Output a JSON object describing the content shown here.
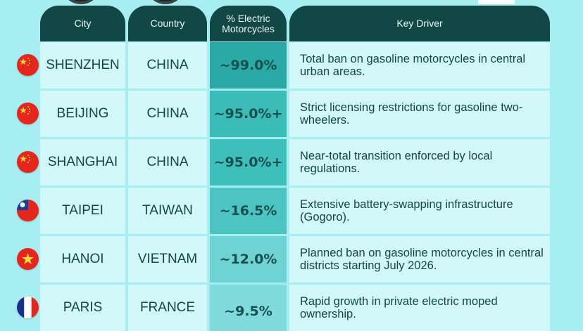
{
  "headers": {
    "city": "City",
    "country": "Country",
    "pct": "% Electric Motorcycles",
    "driver": "Key Driver"
  },
  "rows": [
    {
      "flag": "china-flag",
      "city": "SHENZHEN",
      "country": "CHINA",
      "pct": "~99.0%",
      "driver": "Total ban on gasoline motorcycles in central urban areas.",
      "pct_color": "#2aa9a6"
    },
    {
      "flag": "china-flag",
      "city": "BEIJING",
      "country": "CHINA",
      "pct": "~95.0%+",
      "driver": "Strict licensing restrictions for gasoline two-wheelers.",
      "pct_color": "#3bbcb8"
    },
    {
      "flag": "china-flag",
      "city": "SHANGHAI",
      "country": "CHINA",
      "pct": "~95.0%+",
      "driver": "Near-total transition enforced by local regulations.",
      "pct_color": "#3fbfbb"
    },
    {
      "flag": "taiwan-flag",
      "city": "TAIPEI",
      "country": "TAIWAN",
      "pct": "~16.5%",
      "driver": "Extensive battery-swapping infrastructure (Gogoro).",
      "pct_color": "#4cc5c2"
    },
    {
      "flag": "vietnam-flag",
      "city": "HANOI",
      "country": "VIETNAM",
      "pct": "~12.0%",
      "driver": "Planned ban on gasoline motorcycles in central districts starting July 2026.",
      "pct_color": "#6fd3d3"
    },
    {
      "flag": "france-flag",
      "city": "PARIS",
      "country": "FRANCE",
      "pct": "~9.5%",
      "driver": "Rapid growth in private electric moped ownership.",
      "pct_color": "#80dcdc"
    }
  ]
}
